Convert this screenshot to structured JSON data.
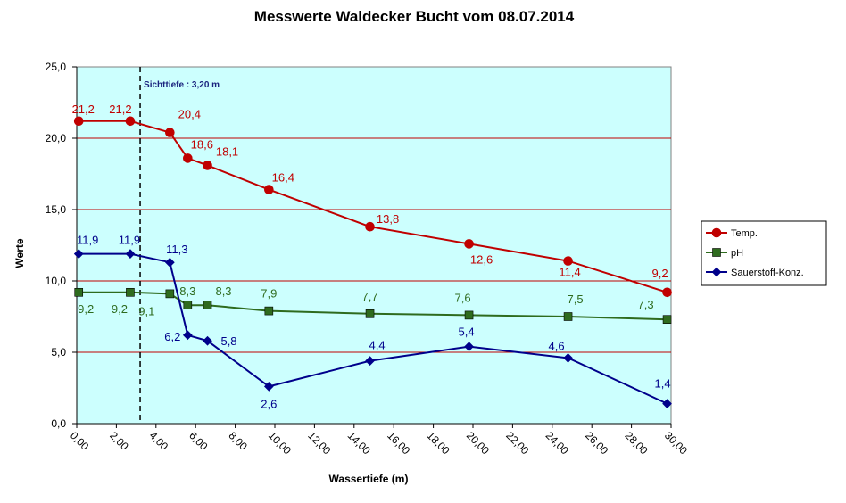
{
  "chart_data": {
    "type": "line",
    "title": "Messwerte Waldecker Bucht vom 08.07.2014",
    "xlabel": "Wassertiefe (m)",
    "ylabel": "Werte",
    "xlim": [
      0,
      30
    ],
    "ylim": [
      0,
      25
    ],
    "x_ticks": [
      "0,00",
      "2,00",
      "4,00",
      "6,00",
      "8,00",
      "10,00",
      "12,00",
      "14,00",
      "16,00",
      "18,00",
      "20,00",
      "22,00",
      "24,00",
      "26,00",
      "28,00",
      "30,00"
    ],
    "y_ticks": [
      "0,0",
      "5,0",
      "10,0",
      "15,0",
      "20,0",
      "25,0"
    ],
    "grid": "horizontal",
    "legend_position": "right",
    "annotation": {
      "text": "Sichttiefe : 3,20 m",
      "x": 3.2
    },
    "series": [
      {
        "name": "Temp.",
        "color": "#c00000",
        "marker": "circle",
        "x": [
          0.1,
          2.7,
          4.7,
          5.6,
          6.6,
          9.7,
          14.8,
          19.8,
          24.8,
          29.8
        ],
        "values": [
          21.2,
          21.2,
          20.4,
          18.6,
          18.1,
          16.4,
          13.8,
          12.6,
          11.4,
          9.2
        ],
        "labels": [
          "21,2",
          "21,2",
          "20,4",
          "18,6",
          "18,1",
          "16,4",
          "13,8",
          "12,6",
          "11,4",
          "9,2"
        ]
      },
      {
        "name": "pH",
        "color": "#2e6b1e",
        "marker": "square",
        "x": [
          0.1,
          2.7,
          4.7,
          5.6,
          6.6,
          9.7,
          14.8,
          19.8,
          24.8,
          29.8
        ],
        "values": [
          9.2,
          9.2,
          9.1,
          8.3,
          8.3,
          7.9,
          7.7,
          7.6,
          7.5,
          7.3
        ],
        "labels": [
          "9,2",
          "9,2",
          "9,1",
          "8,3",
          "8,3",
          "7,9",
          "7,7",
          "7,6",
          "7,5",
          "7,3"
        ]
      },
      {
        "name": "Sauerstoff-Konz.",
        "color": "#00008b",
        "marker": "diamond",
        "x": [
          0.1,
          2.7,
          4.7,
          5.6,
          6.6,
          9.7,
          14.8,
          19.8,
          24.8,
          29.8
        ],
        "values": [
          11.9,
          11.9,
          11.3,
          6.2,
          5.8,
          2.6,
          4.4,
          5.4,
          4.6,
          1.4
        ],
        "labels": [
          "11,9",
          "11,9",
          "11,3",
          "6,2",
          "5,8",
          "2,6",
          "4,4",
          "5,4",
          "4,6",
          "1,4"
        ]
      }
    ]
  }
}
